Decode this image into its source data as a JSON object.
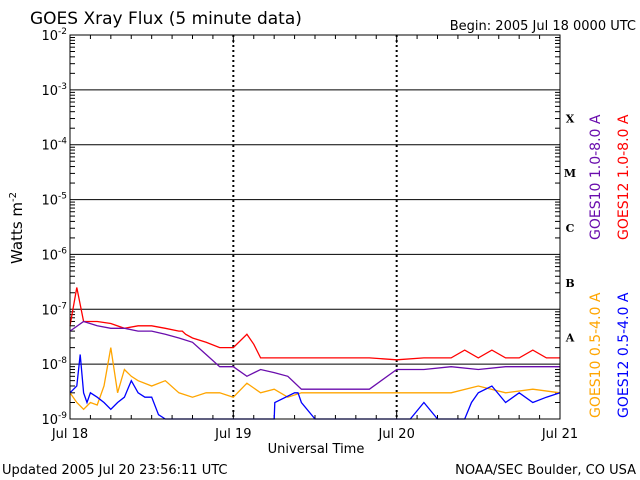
{
  "title": "GOES Xray Flux (5 minute data)",
  "begin_label": "Begin:  2005 Jul 18 0000 UTC",
  "footer_left": "Updated 2005 Jul 20 23:56:11 UTC",
  "footer_right": "NOAA/SEC Boulder, CO USA",
  "colors": {
    "goes10_long": "#6a0dad",
    "goes12_long": "#ff0000",
    "goes10_short": "#ffa500",
    "goes12_short": "#0000ff"
  },
  "chart_data": {
    "type": "line",
    "title": "GOES Xray Flux (5 minute data)",
    "xlabel": "Universal Time",
    "ylabel": "Watts m",
    "ylabel_sup": "-2",
    "y_scale": "log",
    "ylim": [
      1e-09,
      0.01
    ],
    "xlim": [
      "2005-07-18 00:00",
      "2005-07-21 00:00"
    ],
    "grid": true,
    "y_ticks": [
      {
        "base": "10",
        "exp": "-9",
        "value": 1e-09
      },
      {
        "base": "10",
        "exp": "-8",
        "value": 1e-08
      },
      {
        "base": "10",
        "exp": "-7",
        "value": 1e-07
      },
      {
        "base": "10",
        "exp": "-6",
        "value": 1e-06
      },
      {
        "base": "10",
        "exp": "-5",
        "value": 1e-05
      },
      {
        "base": "10",
        "exp": "-4",
        "value": 0.0001
      },
      {
        "base": "10",
        "exp": "-3",
        "value": 0.001
      },
      {
        "base": "10",
        "exp": "-2",
        "value": 0.01
      }
    ],
    "x_ticks": [
      "Jul 18",
      "Jul 19",
      "Jul 20",
      "Jul 21"
    ],
    "flare_classes": [
      {
        "label": "A",
        "value": 1e-08
      },
      {
        "label": "B",
        "value": 1e-07
      },
      {
        "label": "C",
        "value": 1e-06
      },
      {
        "label": "M",
        "value": 1e-05
      },
      {
        "label": "X",
        "value": 0.0001
      }
    ],
    "legend_placement": "right",
    "series": [
      {
        "name": "GOES12 1.0-8.0 A",
        "color": "#ff0000",
        "x_hours": [
          0,
          1,
          2,
          4,
          6,
          8,
          10,
          12,
          14,
          16,
          16.5,
          17,
          18,
          20,
          22,
          24,
          26,
          27,
          28,
          30,
          36,
          40,
          44,
          48,
          52,
          56,
          58,
          60,
          62,
          64,
          66,
          68,
          70,
          72
        ],
        "values": [
          5e-08,
          2.5e-07,
          6e-08,
          6e-08,
          5.5e-08,
          4.5e-08,
          5e-08,
          5e-08,
          4.5e-08,
          4e-08,
          4e-08,
          3.5e-08,
          3e-08,
          2.5e-08,
          2e-08,
          2e-08,
          3.5e-08,
          2.3e-08,
          1.3e-08,
          1.3e-08,
          1.3e-08,
          1.3e-08,
          1.3e-08,
          1.2e-08,
          1.3e-08,
          1.3e-08,
          1.8e-08,
          1.3e-08,
          1.8e-08,
          1.3e-08,
          1.3e-08,
          1.8e-08,
          1.3e-08,
          1.3e-08
        ]
      },
      {
        "name": "GOES10 1.0-8.0 A",
        "color": "#6a0dad",
        "x_hours": [
          0,
          2,
          4,
          6,
          8,
          10,
          12,
          14,
          16,
          18,
          20,
          22,
          24,
          26,
          28,
          30,
          32,
          34,
          36,
          38,
          40,
          44,
          48,
          52,
          56,
          60,
          64,
          68,
          72
        ],
        "values": [
          4e-08,
          6e-08,
          5e-08,
          4.5e-08,
          4.5e-08,
          4e-08,
          4e-08,
          3.5e-08,
          3e-08,
          2.5e-08,
          1.5e-08,
          9e-09,
          9e-09,
          6e-09,
          8e-09,
          7e-09,
          6e-09,
          3.5e-09,
          3.5e-09,
          3.5e-09,
          3.5e-09,
          3.5e-09,
          8e-09,
          8e-09,
          9e-09,
          8e-09,
          9e-09,
          9e-09,
          9e-09
        ]
      },
      {
        "name": "GOES10 0.5-4.0 A",
        "color": "#ffa500",
        "x_hours": [
          0,
          1,
          2,
          3,
          4,
          5,
          6,
          7,
          8,
          9,
          10,
          12,
          14,
          16,
          18,
          20,
          22,
          24,
          26,
          28,
          30,
          32,
          34,
          36,
          40,
          44,
          48,
          52,
          56,
          60,
          64,
          68,
          72
        ],
        "values": [
          3e-09,
          2e-09,
          1.5e-09,
          2e-09,
          1.8e-09,
          4e-09,
          2e-08,
          3e-09,
          8e-09,
          6e-09,
          5e-09,
          4e-09,
          5e-09,
          3e-09,
          2.5e-09,
          3e-09,
          3e-09,
          2.5e-09,
          4.5e-09,
          3e-09,
          3.5e-09,
          2.5e-09,
          3e-09,
          3e-09,
          3e-09,
          3e-09,
          3e-09,
          3e-09,
          3e-09,
          4e-09,
          3e-09,
          3.5e-09,
          3e-09
        ]
      },
      {
        "name": "GOES12 0.5-4.0 A",
        "color": "#0000ff",
        "x_hours": [
          0,
          1,
          1.5,
          2,
          2.5,
          3,
          4,
          5,
          6,
          7,
          8,
          9,
          10,
          11,
          12,
          13,
          14,
          15,
          16,
          17,
          17.1,
          30,
          30.1,
          33,
          33.5,
          34,
          36,
          38,
          40,
          44,
          46,
          48,
          50,
          52,
          54,
          56,
          58,
          59,
          60,
          62,
          64,
          66,
          68,
          70,
          72
        ],
        "values": [
          3e-09,
          4e-09,
          1.5e-08,
          3e-09,
          2e-09,
          3e-09,
          2.5e-09,
          2e-09,
          1.5e-09,
          2e-09,
          2.5e-09,
          5e-09,
          3e-09,
          2.5e-09,
          2.5e-09,
          1.2e-09,
          1e-09,
          1e-09,
          1e-09,
          1e-09,
          1e-09,
          1e-09,
          2e-09,
          3e-09,
          3e-09,
          2e-09,
          1e-09,
          1e-09,
          1e-09,
          1e-09,
          1e-09,
          1e-09,
          1e-09,
          2e-09,
          1e-09,
          1e-09,
          1e-09,
          2e-09,
          3e-09,
          4e-09,
          2e-09,
          3e-09,
          2e-09,
          2.5e-09,
          3e-09
        ]
      }
    ]
  }
}
